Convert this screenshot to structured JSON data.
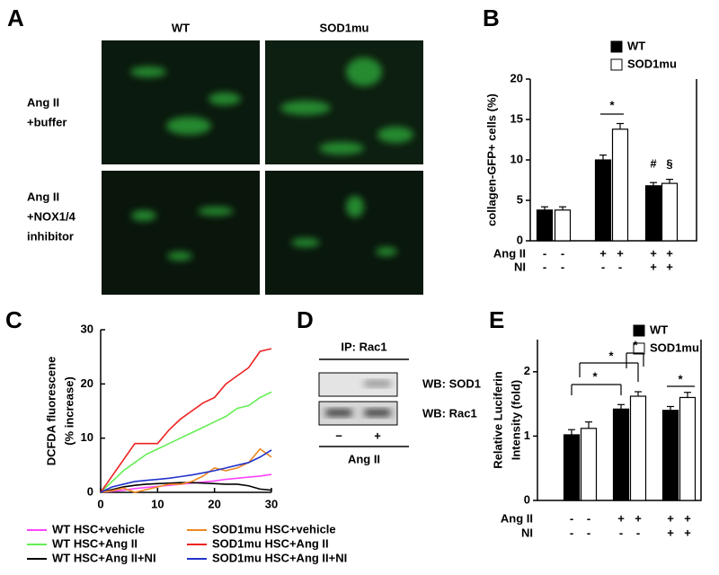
{
  "figure": {
    "panel_labels": [
      "A",
      "B",
      "C",
      "D",
      "E"
    ],
    "panel_a": {
      "columns": [
        "WT",
        "SOD1mu"
      ],
      "rows": [
        [
          "Ang II",
          "+buffer"
        ],
        [
          "Ang II",
          "+NOX1/4",
          "inhibitor"
        ]
      ]
    },
    "panel_d": {
      "ip": "IP: Rac1",
      "blots": [
        "WB: SOD1",
        "WB: Rac1"
      ],
      "lanes": [
        "−",
        "+"
      ],
      "treatment": "Ang II"
    }
  },
  "chart_data": [
    {
      "type": "bar",
      "ylabel": "collagen-GFP+ cells (%)",
      "ylim": [
        0,
        20
      ],
      "yticks": [
        0,
        5,
        10,
        15,
        20
      ],
      "series": [
        {
          "name": "WT",
          "color": "#000000",
          "values": [
            3.8,
            10,
            6.8
          ],
          "errors": [
            0.4,
            0.6,
            0.4
          ]
        },
        {
          "name": "SOD1mu",
          "color": "#ffffff",
          "values": [
            3.8,
            13.8,
            7.1
          ],
          "errors": [
            0.4,
            0.7,
            0.5
          ]
        }
      ],
      "conditions": [
        {
          "name": "Ang II",
          "values": [
            "-",
            "-",
            "+",
            "+",
            "+",
            "+"
          ]
        },
        {
          "name": "NI",
          "values": [
            "-",
            "-",
            "-",
            "-",
            "+",
            "+"
          ]
        }
      ],
      "annotations": [
        "*",
        "#",
        "§"
      ]
    },
    {
      "type": "line",
      "ylabel": [
        "DCFDA fluorescene",
        "(% increase)"
      ],
      "xlim": [
        0,
        30
      ],
      "xticks": [
        0,
        10,
        20,
        30
      ],
      "ylim": [
        0,
        30
      ],
      "yticks": [
        0,
        10,
        20,
        30
      ],
      "x": [
        0,
        2,
        4,
        6,
        8,
        10,
        12,
        14,
        16,
        18,
        20,
        22,
        24,
        26,
        28,
        30
      ],
      "series": [
        {
          "name": "WT HSC+vehicle",
          "color": "#ff44ff",
          "values": [
            0,
            0.2,
            0.4,
            0.7,
            0.9,
            1.1,
            1.3,
            1.5,
            1.7,
            1.9,
            2.1,
            2.4,
            2.6,
            2.8,
            3.0,
            3.3
          ]
        },
        {
          "name": "WT HSC+Ang II",
          "color": "#66ee55",
          "values": [
            0,
            2,
            4,
            5.5,
            7,
            8,
            9,
            10,
            11,
            12,
            13,
            14,
            15.5,
            16,
            17.5,
            18.5
          ]
        },
        {
          "name": "WT HSC+Ang II+NI",
          "color": "#000000",
          "values": [
            0,
            0.5,
            1,
            1.3,
            1.5,
            1.6,
            1.7,
            1.8,
            1.8,
            1.7,
            1.6,
            1.5,
            1.5,
            1.2,
            0.6,
            0.4
          ]
        },
        {
          "name": "SOD1mu HSC+vehicle",
          "color": "#ee8822",
          "values": [
            0,
            0.3,
            0.8,
            0,
            0.5,
            1,
            1.5,
            1.5,
            2,
            3,
            4.5,
            4,
            4.5,
            5.5,
            8,
            6.5
          ]
        },
        {
          "name": "SOD1mu HSC+Ang II",
          "color": "#ee2222",
          "values": [
            0,
            3,
            6,
            9,
            9,
            9,
            11.5,
            13.5,
            15,
            16.5,
            17.5,
            20,
            21.5,
            23,
            26,
            26.5
          ]
        },
        {
          "name": "SOD1mu HSC+Ang II+NI",
          "color": "#2233cc",
          "values": [
            0,
            1,
            1.5,
            2,
            2.2,
            2.4,
            2.6,
            2.9,
            3.2,
            3.6,
            4,
            4.5,
            5,
            5.5,
            6.5,
            7.8
          ]
        }
      ]
    },
    {
      "type": "bar",
      "ylabel": [
        "Relative Luciferin",
        "Intensity (fold)"
      ],
      "ylim": [
        0,
        2.5
      ],
      "yticks": [
        0,
        1,
        2
      ],
      "series": [
        {
          "name": "WT",
          "color": "#000000",
          "values": [
            1.02,
            1.42,
            1.4
          ],
          "errors": [
            0.08,
            0.07,
            0.06
          ]
        },
        {
          "name": "SOD1mu",
          "color": "#ffffff",
          "values": [
            1.12,
            1.62,
            1.6
          ],
          "errors": [
            0.1,
            0.07,
            0.08
          ]
        }
      ],
      "conditions": [
        {
          "name": "Ang II",
          "values": [
            "-",
            "-",
            "+",
            "+",
            "+",
            "+"
          ]
        },
        {
          "name": "NI",
          "values": [
            "-",
            "-",
            "-",
            "-",
            "+",
            "+"
          ]
        }
      ],
      "annotations": [
        "*",
        "*",
        "*",
        "*"
      ]
    }
  ]
}
